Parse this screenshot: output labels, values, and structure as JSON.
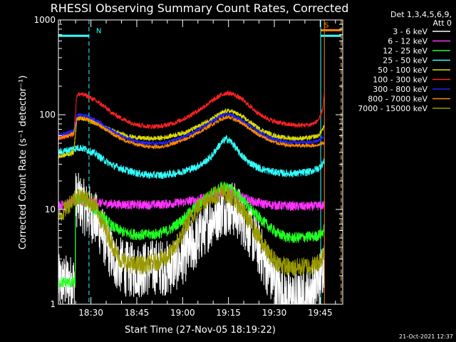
{
  "chart_data": {
    "type": "line",
    "title": "RHESSI Observing Summary Count Rates, Corrected",
    "xlabel": "Start Time (27-Nov-05 18:19:22)",
    "ylabel": "Corrected Count Rate (s⁻¹ detector⁻¹)",
    "ylog": true,
    "ylim": [
      1,
      1000
    ],
    "y_ticks": [
      {
        "value": 1,
        "label": "1"
      },
      {
        "value": 10,
        "label": "10"
      },
      {
        "value": 100,
        "label": "100"
      },
      {
        "value": 1000,
        "label": "1000"
      }
    ],
    "xlim_minutes": [
      0,
      93
    ],
    "x_ticks": [
      {
        "t": 10.63,
        "label": "18:30"
      },
      {
        "t": 25.63,
        "label": "18:45"
      },
      {
        "t": 40.63,
        "label": "19:00"
      },
      {
        "t": 55.63,
        "label": "19:15"
      },
      {
        "t": 70.63,
        "label": "19:30"
      },
      {
        "t": 85.63,
        "label": "19:45"
      }
    ],
    "legend_header": [
      "Det 1,3,4,5,6,9,",
      "Att 0"
    ],
    "legend_position": "right",
    "series": [
      {
        "name": "3 - 6 keV",
        "color": "#ffffff",
        "noise": 0.3,
        "data": [
          [
            0,
            1.7
          ],
          [
            5.5,
            1.7
          ],
          [
            5.6,
            13
          ],
          [
            7,
            12
          ],
          [
            9,
            10
          ],
          [
            12,
            8
          ],
          [
            14,
            6
          ],
          [
            16,
            4.2
          ],
          [
            18,
            3
          ],
          [
            20,
            2.6
          ],
          [
            23,
            2.3
          ],
          [
            26,
            2.3
          ],
          [
            29,
            2.4
          ],
          [
            32,
            2.5
          ],
          [
            36,
            2.4
          ],
          [
            39,
            2.8
          ],
          [
            42,
            3.5
          ],
          [
            45,
            4.5
          ],
          [
            48,
            6.5
          ],
          [
            51,
            8.5
          ],
          [
            54,
            10.5
          ],
          [
            56.5,
            10.5
          ],
          [
            59,
            9
          ],
          [
            62,
            6.5
          ],
          [
            65,
            4.3
          ],
          [
            67,
            3
          ],
          [
            69,
            2.2
          ],
          [
            71,
            1.6
          ],
          [
            74,
            1.2
          ],
          [
            78,
            1.1
          ],
          [
            81,
            1.2
          ],
          [
            83,
            1.5
          ],
          [
            85,
            1.7
          ],
          [
            86,
            2.2
          ],
          [
            87,
            3
          ]
        ]
      },
      {
        "name": "6 - 12 keV",
        "color": "#ff33ff",
        "noise": 0.05,
        "data": [
          [
            0,
            11
          ],
          [
            3,
            11.5
          ],
          [
            5,
            12
          ],
          [
            7,
            12.5
          ],
          [
            9,
            12
          ],
          [
            12,
            11.8
          ],
          [
            16,
            11.5
          ],
          [
            20,
            11.3
          ],
          [
            25,
            11.2
          ],
          [
            30,
            11.2
          ],
          [
            35,
            11.4
          ],
          [
            40,
            11.8
          ],
          [
            45,
            12.6
          ],
          [
            50,
            13.8
          ],
          [
            53,
            15
          ],
          [
            55,
            16
          ],
          [
            57,
            15
          ],
          [
            60,
            13.5
          ],
          [
            64,
            12
          ],
          [
            68,
            11.3
          ],
          [
            72,
            11
          ],
          [
            78,
            10.8
          ],
          [
            84,
            10.8
          ],
          [
            87,
            11
          ]
        ]
      },
      {
        "name": "12 - 25 keV",
        "color": "#22ff22",
        "noise": 0.06,
        "data": [
          [
            0,
            1.7
          ],
          [
            5.5,
            1.7
          ],
          [
            5.6,
            12
          ],
          [
            7,
            13
          ],
          [
            9,
            12
          ],
          [
            12,
            10
          ],
          [
            15,
            8
          ],
          [
            18,
            6.5
          ],
          [
            21,
            5.8
          ],
          [
            24,
            5.5
          ],
          [
            28,
            5.4
          ],
          [
            32,
            5.5
          ],
          [
            36,
            6
          ],
          [
            40,
            7.5
          ],
          [
            44,
            10
          ],
          [
            48,
            13
          ],
          [
            51,
            15.5
          ],
          [
            54,
            17.5
          ],
          [
            57,
            16
          ],
          [
            60,
            13
          ],
          [
            63,
            10
          ],
          [
            66,
            8
          ],
          [
            69,
            6.5
          ],
          [
            72,
            5.5
          ],
          [
            76,
            5
          ],
          [
            80,
            5.1
          ],
          [
            84,
            5.2
          ],
          [
            86,
            5.5
          ],
          [
            87,
            6.2
          ]
        ]
      },
      {
        "name": "25 - 50 keV",
        "color": "#33ffff",
        "noise": 0.04,
        "data": [
          [
            0,
            40
          ],
          [
            3,
            42
          ],
          [
            5,
            44
          ],
          [
            7,
            45
          ],
          [
            9,
            43
          ],
          [
            12,
            39
          ],
          [
            15,
            33
          ],
          [
            18,
            29
          ],
          [
            22,
            26
          ],
          [
            26,
            24
          ],
          [
            30,
            23
          ],
          [
            34,
            23
          ],
          [
            38,
            24
          ],
          [
            42,
            26
          ],
          [
            45,
            28
          ],
          [
            48,
            32
          ],
          [
            50,
            36
          ],
          [
            52,
            45
          ],
          [
            54,
            53
          ],
          [
            55,
            56
          ],
          [
            57,
            50
          ],
          [
            59,
            40
          ],
          [
            62,
            32
          ],
          [
            66,
            27
          ],
          [
            70,
            25
          ],
          [
            74,
            24
          ],
          [
            78,
            24
          ],
          [
            82,
            25
          ],
          [
            85,
            27
          ],
          [
            87,
            32
          ]
        ]
      },
      {
        "name": "50 - 100 keV",
        "color": "#dddd00",
        "noise": 0.025,
        "data": [
          [
            0,
            36
          ],
          [
            3,
            38
          ],
          [
            5,
            40
          ],
          [
            6,
            90
          ],
          [
            7,
            92
          ],
          [
            9,
            90
          ],
          [
            12,
            82
          ],
          [
            15,
            74
          ],
          [
            18,
            67
          ],
          [
            22,
            60
          ],
          [
            26,
            57
          ],
          [
            30,
            56
          ],
          [
            34,
            57
          ],
          [
            38,
            61
          ],
          [
            42,
            66
          ],
          [
            46,
            76
          ],
          [
            50,
            90
          ],
          [
            53,
            102
          ],
          [
            55,
            110
          ],
          [
            57,
            108
          ],
          [
            60,
            96
          ],
          [
            63,
            82
          ],
          [
            66,
            70
          ],
          [
            70,
            61
          ],
          [
            74,
            57
          ],
          [
            78,
            56
          ],
          [
            82,
            57
          ],
          [
            85,
            60
          ],
          [
            87,
            75
          ]
        ]
      },
      {
        "name": "100 - 300 keV",
        "color": "#ff2222",
        "noise": 0.025,
        "data": [
          [
            0,
            56
          ],
          [
            3,
            60
          ],
          [
            5,
            62
          ],
          [
            6,
            160
          ],
          [
            7,
            165
          ],
          [
            9,
            160
          ],
          [
            12,
            142
          ],
          [
            15,
            122
          ],
          [
            18,
            102
          ],
          [
            22,
            87
          ],
          [
            26,
            78
          ],
          [
            30,
            75
          ],
          [
            34,
            76
          ],
          [
            38,
            82
          ],
          [
            42,
            94
          ],
          [
            46,
            112
          ],
          [
            50,
            138
          ],
          [
            53,
            160
          ],
          [
            55,
            170
          ],
          [
            57,
            166
          ],
          [
            60,
            146
          ],
          [
            63,
            120
          ],
          [
            66,
            100
          ],
          [
            70,
            86
          ],
          [
            74,
            80
          ],
          [
            78,
            77
          ],
          [
            82,
            78
          ],
          [
            84,
            82
          ],
          [
            85.5,
            92
          ],
          [
            86.5,
            118
          ],
          [
            87,
            172
          ]
        ]
      },
      {
        "name": "300 - 800 keV",
        "color": "#2222ff",
        "noise": 0.02,
        "data": [
          [
            0,
            60
          ],
          [
            3,
            64
          ],
          [
            5,
            68
          ],
          [
            6,
            98
          ],
          [
            7,
            100
          ],
          [
            9,
            97
          ],
          [
            12,
            88
          ],
          [
            15,
            76
          ],
          [
            18,
            66
          ],
          [
            22,
            57
          ],
          [
            26,
            52
          ],
          [
            30,
            50
          ],
          [
            34,
            50
          ],
          [
            38,
            54
          ],
          [
            42,
            60
          ],
          [
            46,
            70
          ],
          [
            50,
            84
          ],
          [
            53,
            96
          ],
          [
            55,
            101
          ],
          [
            57,
            98
          ],
          [
            60,
            88
          ],
          [
            63,
            75
          ],
          [
            66,
            64
          ],
          [
            70,
            56
          ],
          [
            74,
            52
          ],
          [
            78,
            51
          ],
          [
            82,
            51
          ],
          [
            85,
            53
          ],
          [
            87,
            60
          ]
        ]
      },
      {
        "name": "800 - 7000 keV",
        "color": "#ff8800",
        "noise": 0.02,
        "data": [
          [
            0,
            56
          ],
          [
            3,
            60
          ],
          [
            5,
            63
          ],
          [
            6,
            90
          ],
          [
            7,
            93
          ],
          [
            9,
            90
          ],
          [
            12,
            82
          ],
          [
            15,
            71
          ],
          [
            18,
            62
          ],
          [
            22,
            53
          ],
          [
            26,
            48
          ],
          [
            30,
            46
          ],
          [
            34,
            46
          ],
          [
            38,
            50
          ],
          [
            42,
            56
          ],
          [
            46,
            65
          ],
          [
            50,
            78
          ],
          [
            53,
            89
          ],
          [
            55,
            94
          ],
          [
            57,
            91
          ],
          [
            60,
            82
          ],
          [
            63,
            70
          ],
          [
            66,
            60
          ],
          [
            70,
            52
          ],
          [
            74,
            48
          ],
          [
            78,
            47
          ],
          [
            82,
            47
          ],
          [
            85,
            48
          ],
          [
            87,
            51
          ]
        ]
      },
      {
        "name": "7000 - 15000 keV",
        "color": "#999900",
        "noise": 0.1,
        "data": [
          [
            0,
            8
          ],
          [
            3,
            11
          ],
          [
            5,
            13
          ],
          [
            7,
            14
          ],
          [
            9,
            13
          ],
          [
            12,
            11
          ],
          [
            15,
            6.5
          ],
          [
            18,
            4
          ],
          [
            20,
            3
          ],
          [
            24,
            2.6
          ],
          [
            28,
            2.6
          ],
          [
            32,
            2.8
          ],
          [
            36,
            3.2
          ],
          [
            39,
            4.5
          ],
          [
            42,
            7
          ],
          [
            45,
            10
          ],
          [
            48,
            12.5
          ],
          [
            51,
            14
          ],
          [
            54,
            15
          ],
          [
            57,
            13.5
          ],
          [
            60,
            10
          ],
          [
            63,
            7
          ],
          [
            66,
            4.8
          ],
          [
            69,
            3.3
          ],
          [
            72,
            2.7
          ],
          [
            76,
            2.4
          ],
          [
            80,
            2.5
          ],
          [
            84,
            2.6
          ],
          [
            86,
            3
          ],
          [
            87,
            4
          ]
        ]
      }
    ],
    "flags": [
      {
        "label": "N",
        "color": "#33ffff",
        "start": 0,
        "end": 10,
        "level": 680
      },
      {
        "label": "S",
        "color": "#ff8800",
        "start": 85.8,
        "end": 92.5,
        "level": 780
      },
      {
        "label": "",
        "color": "#33ffff",
        "start": 85.8,
        "end": 92.5,
        "level": 680
      }
    ],
    "vlines": [
      {
        "t": 10.0,
        "color": "#33ffff",
        "style": "dashed"
      },
      {
        "t": 85.8,
        "color": "#33ffff",
        "style": "solid"
      },
      {
        "t": 87.0,
        "color": "#ff8800",
        "style": "solid"
      },
      {
        "t": 92.5,
        "color": "#33ffff",
        "style": "dashed"
      },
      {
        "t": 92.5,
        "color": "#ff8800",
        "style": "dashed"
      }
    ]
  },
  "timestamp": "21-Oct-2021 12:37"
}
